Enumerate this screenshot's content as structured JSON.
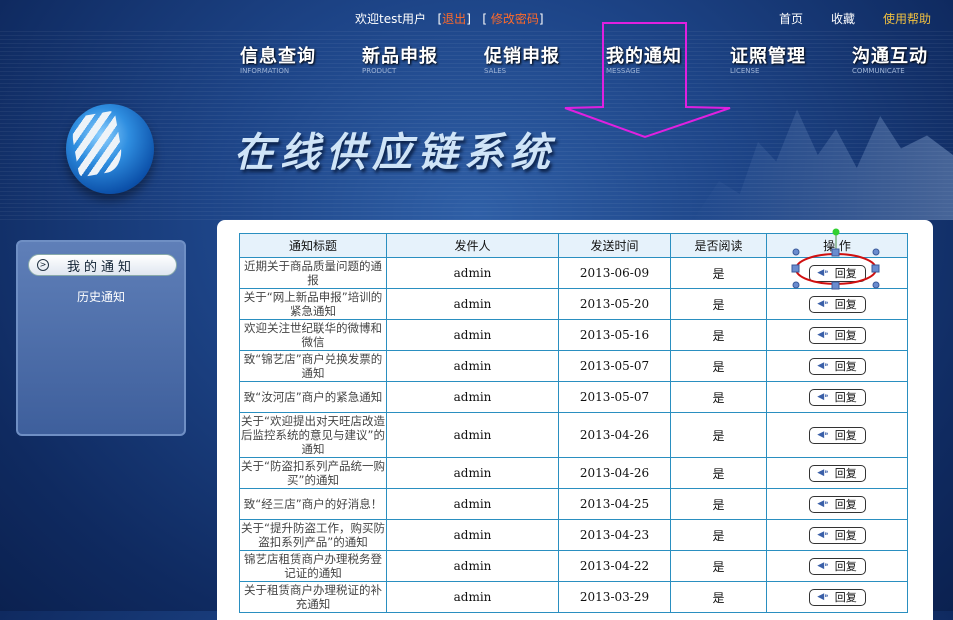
{
  "topbar": {
    "welcome": "欢迎test用户",
    "logout": "退出",
    "change_password": "修改密码",
    "links": [
      "首页",
      "收藏"
    ],
    "help": "使用帮助"
  },
  "nav": [
    {
      "label": "信息查询",
      "sub": "INFORMATION"
    },
    {
      "label": "新品申报",
      "sub": "PRODUCT"
    },
    {
      "label": "促销申报",
      "sub": "SALES"
    },
    {
      "label": "我的通知",
      "sub": "MESSAGE"
    },
    {
      "label": "证照管理",
      "sub": "LICENSE"
    },
    {
      "label": "沟通互动",
      "sub": "COMMUNICATE"
    }
  ],
  "banner": {
    "title": "在线供应链系统"
  },
  "sidebar": {
    "active": "我的通知",
    "items": [
      "历史通知"
    ]
  },
  "table": {
    "headers": [
      "通知标题",
      "发件人",
      "发送时间",
      "是否阅读",
      "操 作"
    ],
    "reply_label": "回复",
    "rows": [
      [
        "近期关于商品质量问题的通报",
        "admin",
        "2013-06-09",
        "是"
      ],
      [
        "关于“网上新品申报”培训的紧急通知",
        "admin",
        "2013-05-20",
        "是"
      ],
      [
        "欢迎关注世纪联华的微博和微信",
        "admin",
        "2013-05-16",
        "是"
      ],
      [
        "致“锦艺店”商户兑换发票的通知",
        "admin",
        "2013-05-07",
        "是"
      ],
      [
        "致“汝河店”商户的紧急通知",
        "admin",
        "2013-05-07",
        "是"
      ],
      [
        "关于“欢迎提出对天旺店改造后监控系统的意见与建议”的通知",
        "admin",
        "2013-04-26",
        "是"
      ],
      [
        "关于“防盗扣系列产品统一购买”的通知",
        "admin",
        "2013-04-26",
        "是"
      ],
      [
        "致“经三店”商户的好消息！",
        "admin",
        "2013-04-25",
        "是"
      ],
      [
        "关于“提升防盗工作，购买防盗扣系列产品”的通知",
        "admin",
        "2013-04-23",
        "是"
      ],
      [
        "锦艺店租赁商户办理税务登记证的通知",
        "admin",
        "2013-04-22",
        "是"
      ],
      [
        "关于租赁商户办理税证的补充通知",
        "admin",
        "2013-03-29",
        "是"
      ]
    ]
  },
  "colors": {
    "accent": "#ff6a2a",
    "annotation_arrow": "#e020e0",
    "annotation_ellipse": "#d01010",
    "table_border": "#2a8fc0"
  },
  "icons": {
    "reply": "speaker-icon",
    "sidebar": "circle-chevron-right-icon"
  }
}
